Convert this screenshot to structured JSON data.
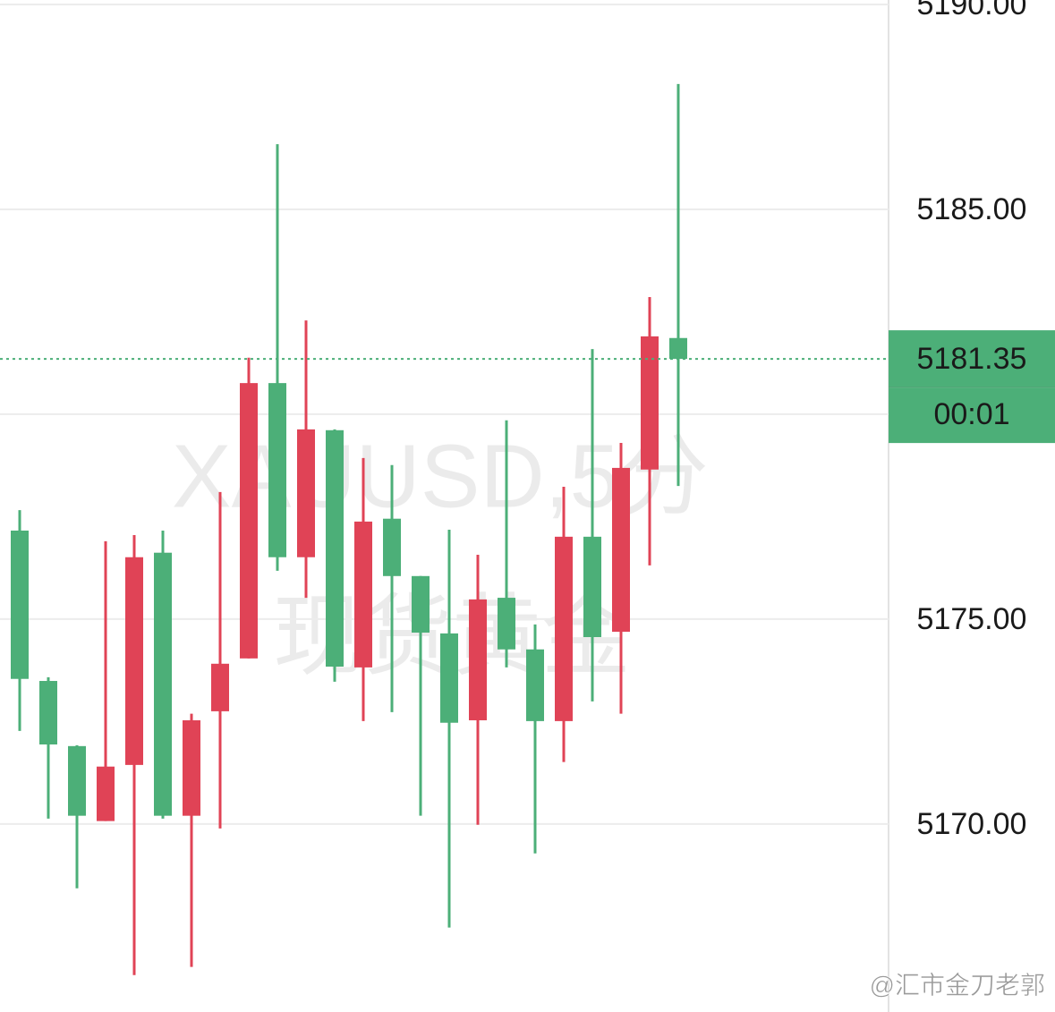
{
  "chart_data": {
    "type": "candlestick",
    "watermark_symbol": "XAUUSD,5分",
    "watermark_name": "现货黄金",
    "credit": "@汇市金刀老郭",
    "countdown": "00:01",
    "up_color": "#e04356",
    "down_color": "#4caf78",
    "open": [
      5177.16,
      5173.49,
      5171.9,
      5170.07,
      5171.44,
      5176.62,
      5170.2,
      5172.75,
      5174.04,
      5180.76,
      5176.51,
      5179.61,
      5173.82,
      5177.45,
      5176.05,
      5174.65,
      5172.53,
      5175.52,
      5174.26,
      5172.51,
      5177.01,
      5174.69,
      5178.65,
      5181.86
    ],
    "high": [
      5177.66,
      5173.58,
      5171.92,
      5176.9,
      5177.05,
      5177.16,
      5172.69,
      5178.1,
      5181.38,
      5186.59,
      5182.29,
      5179.63,
      5178.93,
      5178.76,
      5176.05,
      5177.18,
      5176.57,
      5179.85,
      5174.87,
      5178.23,
      5181.59,
      5179.3,
      5182.86,
      5188.06
    ],
    "low": [
      5172.27,
      5170.13,
      5168.43,
      5170.07,
      5166.31,
      5170.13,
      5166.51,
      5169.89,
      5174.04,
      5176.18,
      5175.52,
      5173.47,
      5172.51,
      5172.73,
      5170.2,
      5167.47,
      5169.98,
      5173.82,
      5169.28,
      5171.51,
      5172.99,
      5172.69,
      5176.31,
      5178.25
    ],
    "close": [
      5173.54,
      5171.94,
      5170.2,
      5171.4,
      5176.51,
      5170.2,
      5172.53,
      5173.91,
      5180.76,
      5176.51,
      5179.63,
      5173.84,
      5177.38,
      5176.05,
      5174.67,
      5172.47,
      5175.48,
      5174.26,
      5172.51,
      5177.01,
      5174.56,
      5178.69,
      5181.9,
      5181.35
    ],
    "ylim": [
      5165.41,
      5190.11
    ],
    "yticks": [
      {
        "value": 5170,
        "label": "5170.00"
      },
      {
        "value": 5175,
        "label": "5175.00"
      },
      {
        "value": 5180,
        "label": ""
      },
      {
        "value": 5185,
        "label": "5185.00"
      },
      {
        "value": 5190,
        "label": "5190.00"
      }
    ],
    "grid": true
  }
}
